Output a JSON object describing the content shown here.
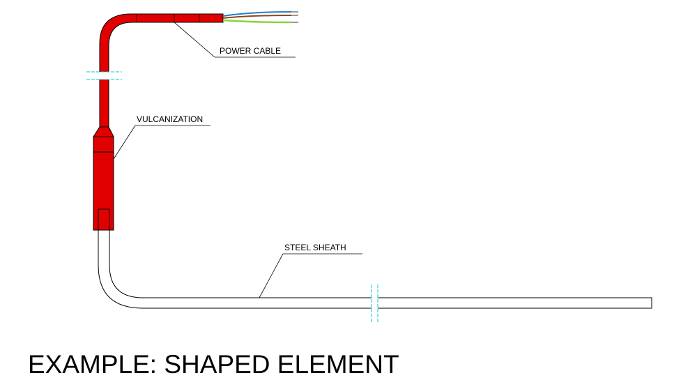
{
  "labels": {
    "power_cable": "POWER CABLE",
    "vulcanization": "VULCANIZATION",
    "steel_sheath": "STEEL SHEATH"
  },
  "caption": "EXAMPLE: SHAPED ELEMENT",
  "colors": {
    "cable_red": "#e00000",
    "outline": "#000000",
    "break_line": "#00c8d8",
    "wire_blue": "#1f7fd0",
    "wire_brown": "#8b4a1c",
    "wire_green_yellow": "#8bd23a",
    "wire_tip": "#9a9a9a"
  }
}
